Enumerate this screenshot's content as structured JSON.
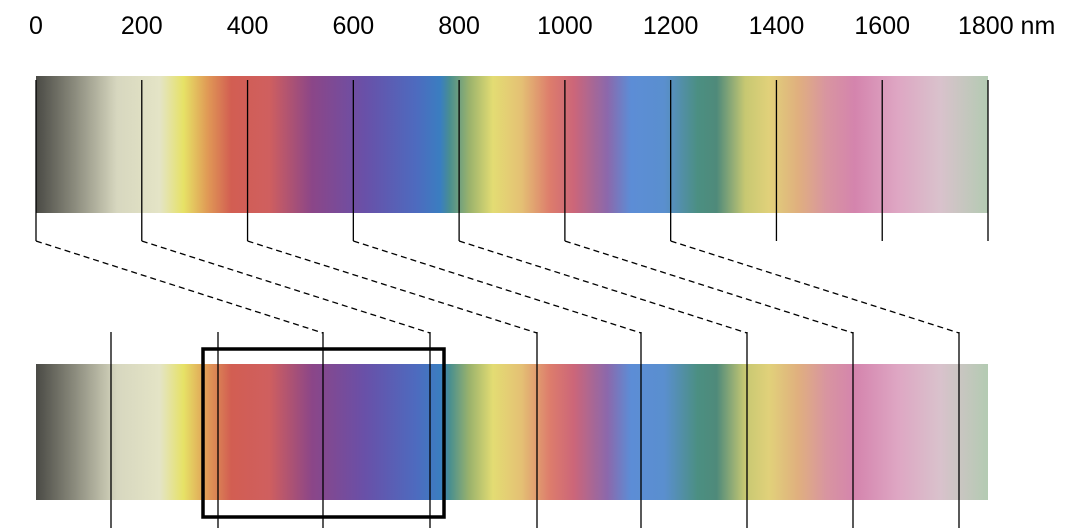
{
  "axis": {
    "labels": [
      "0",
      "200",
      "400",
      "600",
      "800",
      "1000",
      "1200",
      "1400",
      "1600",
      "1800 nm"
    ],
    "values": [
      0,
      200,
      400,
      600,
      800,
      1000,
      1200,
      1400,
      1600,
      1800
    ]
  },
  "gradient_stops": [
    {
      "offset": 0.0,
      "color": "#4a4a45"
    },
    {
      "offset": 0.04,
      "color": "#8a8a7c"
    },
    {
      "offset": 0.085,
      "color": "#d7d7bf"
    },
    {
      "offset": 0.13,
      "color": "#e4e4c6"
    },
    {
      "offset": 0.155,
      "color": "#e6e266"
    },
    {
      "offset": 0.18,
      "color": "#e09a56"
    },
    {
      "offset": 0.205,
      "color": "#d25e52"
    },
    {
      "offset": 0.245,
      "color": "#cf5f5f"
    },
    {
      "offset": 0.29,
      "color": "#8b4688"
    },
    {
      "offset": 0.345,
      "color": "#6950a8"
    },
    {
      "offset": 0.4,
      "color": "#4d6bbf"
    },
    {
      "offset": 0.425,
      "color": "#3a7ec0"
    },
    {
      "offset": 0.435,
      "color": "#4a8f8e"
    },
    {
      "offset": 0.455,
      "color": "#9ab26c"
    },
    {
      "offset": 0.48,
      "color": "#e3dc73"
    },
    {
      "offset": 0.51,
      "color": "#e4c074"
    },
    {
      "offset": 0.54,
      "color": "#dd7c6c"
    },
    {
      "offset": 0.565,
      "color": "#cc6679"
    },
    {
      "offset": 0.6,
      "color": "#8c68ab"
    },
    {
      "offset": 0.625,
      "color": "#5c8dd6"
    },
    {
      "offset": 0.66,
      "color": "#5a8fcf"
    },
    {
      "offset": 0.695,
      "color": "#4b8f82"
    },
    {
      "offset": 0.715,
      "color": "#4f8a7a"
    },
    {
      "offset": 0.745,
      "color": "#c7c872"
    },
    {
      "offset": 0.77,
      "color": "#e1d17a"
    },
    {
      "offset": 0.8,
      "color": "#e0b07e"
    },
    {
      "offset": 0.83,
      "color": "#d895a0"
    },
    {
      "offset": 0.86,
      "color": "#d484ad"
    },
    {
      "offset": 0.905,
      "color": "#dea6c3"
    },
    {
      "offset": 0.95,
      "color": "#d9c2cc"
    },
    {
      "offset": 1.0,
      "color": "#b3cbb2"
    }
  ],
  "colors": {
    "line": "#000000",
    "background": "#ffffff"
  }
}
